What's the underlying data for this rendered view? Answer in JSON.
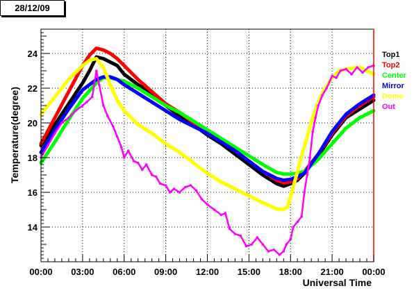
{
  "header": {
    "date": "28/12/09"
  },
  "chart_data": {
    "type": "scatter",
    "xlabel": "Universal Time",
    "ylabel": "Temperature(degree)",
    "xlim": [
      0,
      24
    ],
    "ylim": [
      12.0,
      25.4
    ],
    "x_ticks": [
      0,
      3,
      6,
      9,
      12,
      15,
      18,
      21,
      24
    ],
    "x_tick_labels": [
      "00:00",
      "03:00",
      "06:00",
      "09:00",
      "12:00",
      "15:00",
      "18:00",
      "21:00",
      "00:00"
    ],
    "y_ticks": [
      14,
      16,
      18,
      20,
      22,
      24
    ],
    "y_tick_labels": [
      "14",
      "16",
      "18",
      "20",
      "22",
      "24"
    ],
    "grid": "dotted",
    "legend_position": "right",
    "series": [
      {
        "name": "Top1",
        "color": "#000000",
        "x": [
          0,
          1,
          2,
          3,
          3.5,
          4,
          4.5,
          5,
          5.5,
          6,
          7,
          8,
          9,
          10,
          11,
          12,
          13,
          14,
          15,
          16,
          17,
          17.5,
          18,
          18.5,
          19,
          20,
          21,
          22,
          23,
          24
        ],
        "y": [
          18.7,
          19.9,
          21.1,
          22.3,
          23.0,
          23.8,
          23.7,
          23.5,
          23.3,
          22.8,
          22.2,
          21.7,
          21.0,
          20.4,
          19.9,
          19.3,
          18.8,
          18.2,
          17.6,
          17.0,
          16.5,
          16.35,
          16.5,
          16.7,
          17.1,
          18.1,
          19.3,
          20.3,
          20.8,
          21.3
        ]
      },
      {
        "name": "Top2",
        "color": "#ff0000",
        "x": [
          0,
          1,
          2,
          3,
          3.5,
          4,
          4.5,
          5,
          5.5,
          6,
          7,
          8,
          9,
          10,
          11,
          12,
          13,
          14,
          15,
          16,
          17,
          17.5,
          18,
          18.5,
          19,
          20,
          21,
          22,
          23,
          24
        ],
        "y": [
          18.8,
          20.3,
          21.8,
          23.3,
          23.9,
          24.3,
          24.2,
          24.0,
          23.7,
          23.3,
          22.5,
          21.8,
          21.1,
          20.6,
          20.0,
          19.5,
          19.0,
          18.4,
          17.8,
          17.2,
          16.7,
          16.55,
          16.6,
          16.8,
          17.2,
          18.2,
          19.4,
          20.4,
          21.0,
          21.5
        ]
      },
      {
        "name": "Center",
        "color": "#00ff00",
        "x": [
          0,
          1,
          2,
          3,
          4,
          4.5,
          5,
          5.5,
          6,
          7,
          8,
          9,
          10,
          11,
          12,
          13,
          14,
          15,
          16,
          17,
          17.5,
          18,
          18.5,
          19,
          20,
          21,
          22,
          23,
          24
        ],
        "y": [
          17.7,
          18.9,
          20.2,
          21.4,
          22.3,
          22.6,
          22.6,
          22.5,
          22.4,
          22.0,
          21.5,
          21.0,
          20.6,
          20.1,
          19.6,
          19.1,
          18.6,
          18.1,
          17.6,
          17.15,
          17.05,
          17.05,
          17.1,
          17.2,
          17.9,
          18.8,
          19.7,
          20.3,
          20.7
        ]
      },
      {
        "name": "Mirror",
        "color": "#0000ff",
        "x": [
          0,
          1,
          2,
          3,
          4,
          4.5,
          5,
          5.5,
          6,
          7,
          8,
          9,
          10,
          11,
          12,
          13,
          14,
          15,
          16,
          17,
          17.5,
          18,
          18.5,
          19,
          20,
          21,
          22,
          23,
          24
        ],
        "y": [
          18.3,
          19.6,
          20.8,
          21.9,
          22.5,
          22.65,
          22.65,
          22.5,
          22.2,
          21.7,
          21.2,
          20.7,
          20.2,
          19.8,
          19.4,
          18.9,
          18.4,
          17.8,
          17.2,
          16.8,
          16.7,
          16.75,
          16.9,
          17.1,
          18.2,
          19.5,
          20.5,
          21.1,
          21.6
        ]
      },
      {
        "name": "Dome",
        "color": "#ffff00",
        "x": [
          0,
          1,
          2,
          3,
          3.5,
          4,
          4.5,
          5,
          5.5,
          6,
          6.5,
          7,
          8,
          9,
          10,
          11,
          12,
          13,
          14,
          15,
          16,
          17,
          17.5,
          17.8,
          18.2,
          18.7,
          19.2,
          19.6,
          20,
          20.5,
          21,
          21.5,
          22,
          23,
          23.5,
          24
        ],
        "y": [
          20.5,
          21.5,
          22.5,
          23.3,
          23.6,
          23.7,
          23.2,
          22.2,
          21.3,
          20.7,
          20.3,
          19.9,
          19.4,
          18.8,
          18.3,
          17.7,
          17.1,
          16.6,
          16.2,
          15.8,
          15.4,
          15.05,
          15.0,
          15.2,
          16.3,
          17.8,
          19.2,
          20.3,
          21.2,
          22.0,
          22.6,
          23.0,
          23.1,
          23.2,
          23.0,
          22.8
        ]
      },
      {
        "name": "Out",
        "color": "#ff00ff",
        "x": [
          0,
          0.5,
          1,
          1.5,
          2,
          2.5,
          3,
          3.3,
          3.7,
          4.0,
          4.2,
          4.5,
          4.8,
          5.2,
          5.5,
          5.8,
          6.0,
          6.3,
          6.7,
          7.0,
          7.3,
          7.6,
          8.0,
          8.3,
          8.6,
          9.0,
          9.3,
          9.6,
          10.0,
          10.4,
          10.8,
          11.2,
          11.6,
          12.0,
          12.5,
          13.0,
          13.3,
          13.6,
          14.0,
          14.4,
          14.8,
          15.2,
          15.6,
          16.0,
          16.4,
          16.8,
          17.2,
          17.5,
          17.7,
          18.0,
          18.2,
          18.5,
          18.8,
          19.0,
          19.2,
          19.4,
          19.6,
          19.8,
          20.0,
          20.3,
          20.6,
          21.0,
          21.3,
          21.6,
          22.0,
          22.4,
          22.8,
          23.2,
          23.6,
          24.0
        ],
        "y": [
          18.0,
          18.7,
          19.4,
          20.0,
          20.3,
          20.7,
          21.0,
          21.2,
          21.5,
          23.0,
          22.2,
          21.0,
          20.4,
          19.8,
          19.2,
          18.6,
          18.0,
          18.4,
          17.8,
          17.7,
          17.3,
          17.6,
          17.0,
          16.9,
          16.5,
          16.4,
          16.0,
          16.2,
          16.0,
          16.3,
          16.4,
          16.1,
          15.6,
          15.3,
          15.0,
          14.7,
          14.8,
          13.9,
          13.6,
          13.5,
          12.9,
          13.0,
          13.4,
          13.0,
          12.6,
          12.7,
          12.4,
          12.6,
          13.0,
          13.3,
          14.0,
          14.3,
          14.6,
          16.0,
          17.0,
          18.0,
          19.5,
          20.3,
          21.0,
          21.6,
          22.0,
          22.7,
          22.6,
          23.0,
          23.1,
          22.8,
          23.2,
          22.9,
          23.2,
          23.3
        ]
      }
    ]
  }
}
